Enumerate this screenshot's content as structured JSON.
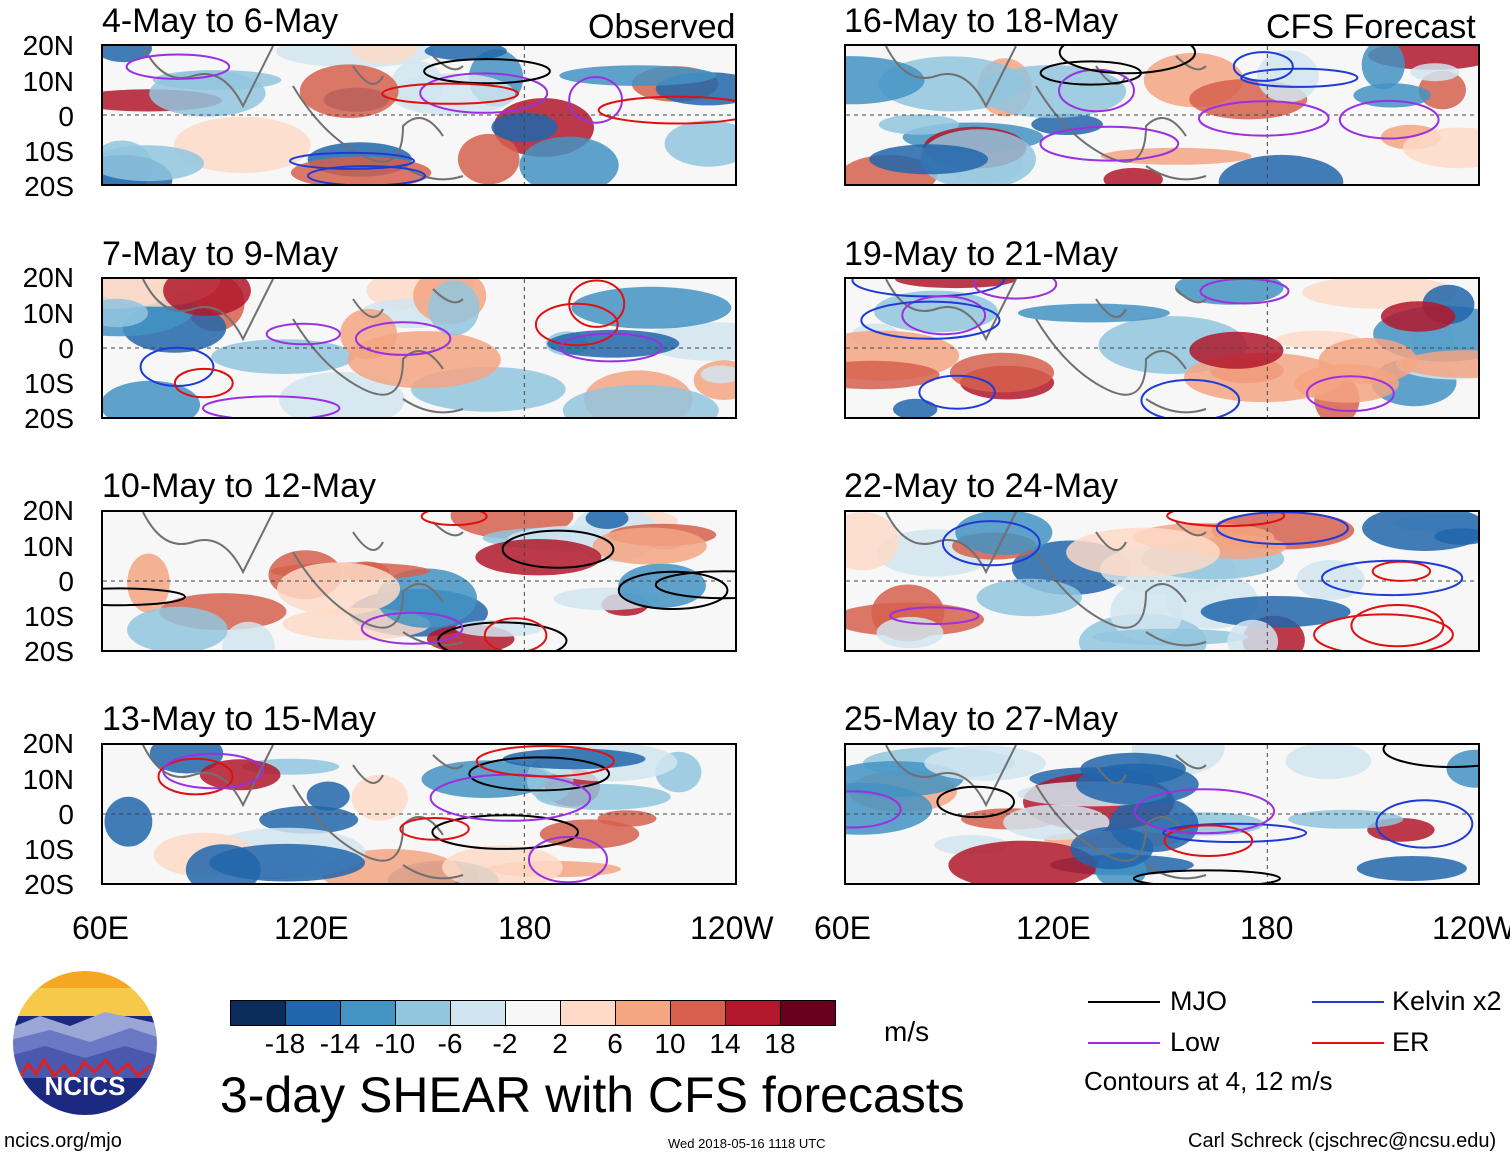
{
  "chart_data": {
    "type": "heatmap",
    "title": "3-day SHEAR with CFS forecasts",
    "units": "m/s",
    "lat_ticks": [
      "20N",
      "10N",
      "0",
      "10S",
      "20S"
    ],
    "lon_ticks": [
      "60E",
      "120E",
      "180",
      "120W"
    ],
    "columns": [
      {
        "label": "Observed",
        "panels": [
          "4-May to 6-May",
          "7-May to 9-May",
          "10-May to 12-May",
          "13-May to 15-May"
        ]
      },
      {
        "label": "CFS Forecast",
        "panels": [
          "16-May to 18-May",
          "19-May to 21-May",
          "22-May to 24-May",
          "25-May to 27-May"
        ]
      }
    ],
    "colorbar": {
      "ticks": [
        "-18",
        "-14",
        "-10",
        "-6",
        "-2",
        "2",
        "6",
        "10",
        "14",
        "18"
      ],
      "colors": [
        "#0b2d5c",
        "#2166ac",
        "#4393c3",
        "#92c5de",
        "#d1e5f0",
        "#f7f7f7",
        "#fddbc7",
        "#f4a582",
        "#d6604d",
        "#b2182b",
        "#67001f"
      ]
    },
    "legend": [
      {
        "label": "MJO",
        "color": "#000000"
      },
      {
        "label": "Kelvin x2",
        "color": "#1f3bd6"
      },
      {
        "label": "Low",
        "color": "#9b30e0"
      },
      {
        "label": "ER",
        "color": "#e01010"
      }
    ],
    "contour_note": "Contours at 4, 12 m/s"
  },
  "footer": {
    "left": "ncics.org/mjo",
    "center": "Wed 2018-05-16 1118 UTC",
    "right": "Carl Schreck (cjschrec@ncsu.edu)"
  },
  "logo": {
    "text": "NCICS"
  }
}
